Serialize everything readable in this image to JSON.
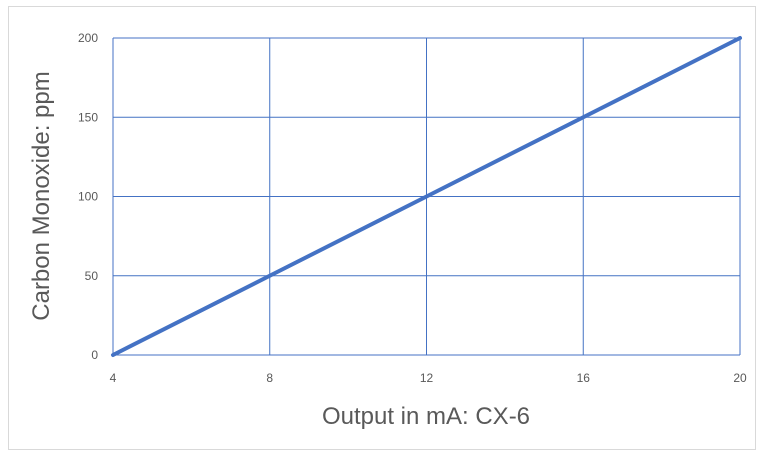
{
  "chart_data": {
    "type": "line",
    "x": [
      4,
      8,
      12,
      16,
      20
    ],
    "series": [
      {
        "values": [
          0,
          50,
          100,
          150,
          200
        ]
      }
    ],
    "xlabel": "Output in mA: CX-6",
    "ylabel": "Carbon Monoxide: ppm",
    "xlim": [
      4,
      20
    ],
    "ylim": [
      0,
      200
    ],
    "xticks": [
      "4",
      "8",
      "12",
      "16",
      "20"
    ],
    "yticks": [
      "0",
      "50",
      "100",
      "150",
      "200"
    ],
    "grid": true,
    "colors": {
      "line": "#4472c4",
      "grid": "#4472c4"
    }
  }
}
